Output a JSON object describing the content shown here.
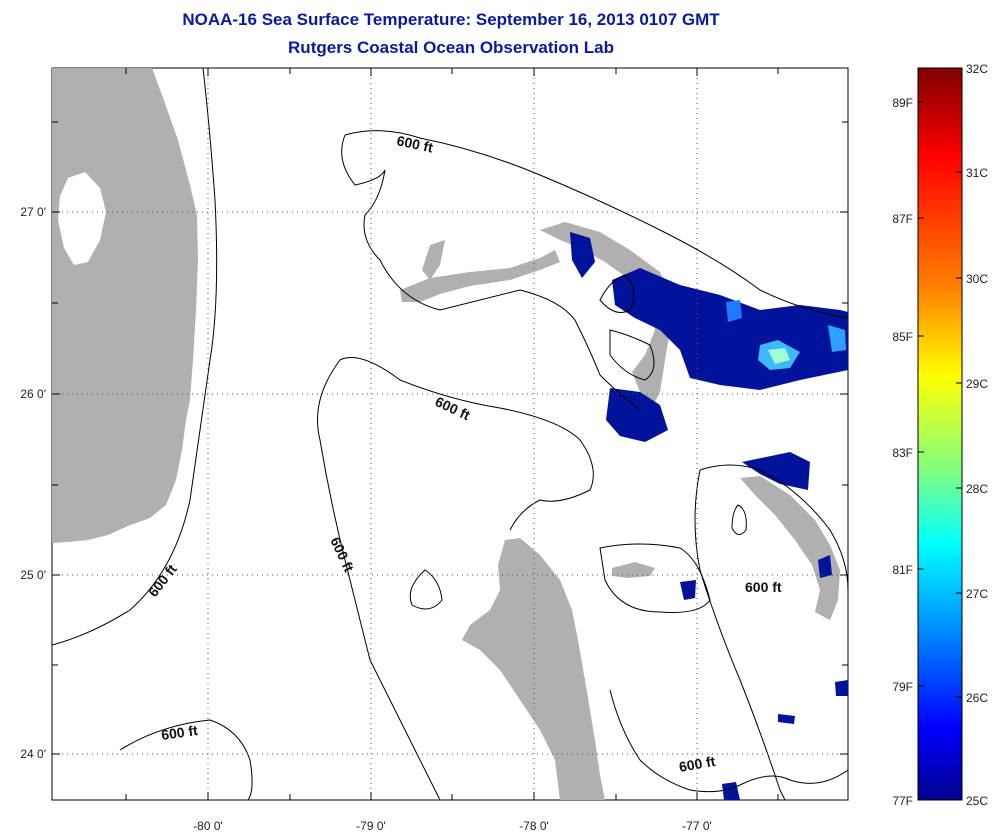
{
  "title": "NOAA-16 Sea Surface Temperature:  September 16, 2013 0107 GMT",
  "subtitle": "Rutgers Coastal Ocean Observation Lab",
  "lon_labels": [
    "-80 0'",
    "-79 0'",
    "-78 0'",
    "-77 0'"
  ],
  "lat_labels": [
    "27 0'",
    "26 0'",
    "25 0'",
    "24 0'"
  ],
  "contour_labels": [
    "600 ft",
    "600 ft",
    "600 ft",
    "600 ft",
    "600 ft",
    "600 ft"
  ],
  "colorbar": {
    "celsius": [
      "32C",
      "31C",
      "30C",
      "29C",
      "28C",
      "27C",
      "26C",
      "25C"
    ],
    "fahrenheit": [
      "89F",
      "87F",
      "85F",
      "83F",
      "81F",
      "79F",
      "77F"
    ],
    "stops": [
      "#7f0000",
      "#ff0000",
      "#ff8000",
      "#ffff00",
      "#80ff80",
      "#00ffff",
      "#0080ff",
      "#0000ff",
      "#00008f"
    ]
  },
  "colors": {
    "land": "#b0b0b0",
    "water": "#ffffff",
    "sst_low": "#00139a",
    "title": "#0a1a9e"
  }
}
